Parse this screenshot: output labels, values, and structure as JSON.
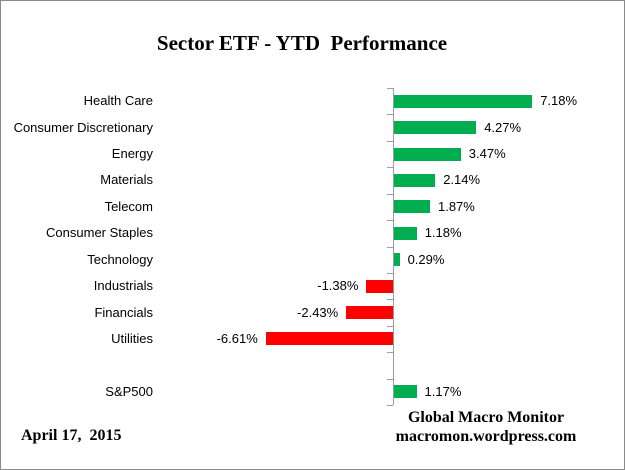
{
  "chart_data": {
    "type": "bar",
    "orientation": "horizontal",
    "title": "Sector ETF - YTD  Performance",
    "categories": [
      "Health Care",
      "Consumer Discretionary",
      "Energy",
      "Materials",
      "Telecom",
      "Consumer Staples",
      "Technology",
      "Industrials",
      "Financials",
      "Utilities",
      "",
      "S&P500"
    ],
    "values": [
      7.18,
      4.27,
      3.47,
      2.14,
      1.87,
      1.18,
      0.29,
      -1.38,
      -2.43,
      -6.61,
      null,
      1.17
    ],
    "data_labels": [
      "7.18%",
      "4.27%",
      "3.47%",
      "2.14%",
      "1.87%",
      "1.18%",
      "0.29%",
      "-1.38%",
      "-2.43%",
      "-6.61%",
      "",
      "1.17%"
    ],
    "positive_color": "#00AE4F",
    "negative_color": "#FF0000",
    "axis_color": "#9C9C9C",
    "grid": "off",
    "legend": "none",
    "value_axis_labels_visible": false
  },
  "footer": {
    "date": "April 17,  2015",
    "credit_line1": "Global Macro Monitor",
    "credit_line2": "macromon.wordpress.com"
  }
}
